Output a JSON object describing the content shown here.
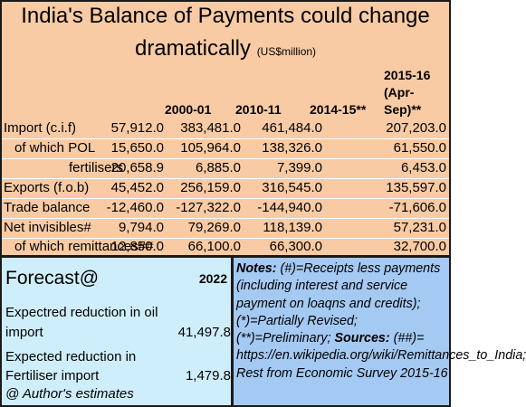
{
  "title": {
    "line1": "India's Balance of Payments could change",
    "line2": "dramatically",
    "unit": "(US$million)"
  },
  "columns": [
    "2000-01",
    "2010-11",
    "2014-15**",
    "2015-16 (Apr-Sep)**"
  ],
  "columns_split": {
    "c3_line1": "2015-16",
    "c3_line2": "(Apr-",
    "c3_line3": "Sep)**"
  },
  "rows": [
    {
      "label": "Import (c.i.f)",
      "values": [
        "57,912.0",
        "383,481.0",
        "461,484.0",
        "207,203.0"
      ]
    },
    {
      "label": "of which POL",
      "values": [
        "15,650.0",
        "105,964.0",
        "138,326.0",
        "61,550.0"
      ]
    },
    {
      "label": "fertilisers",
      "values": [
        "20,658.9",
        "6,885.0",
        "7,399.0",
        "6,453.0"
      ]
    },
    {
      "label": "Exports (f.o.b)",
      "values": [
        "45,452.0",
        "256,159.0",
        "316,545.0",
        "135,597.0"
      ]
    },
    {
      "label": "Trade balance",
      "values": [
        "-12,460.0",
        "-127,322.0",
        "-144,940.0",
        "-71,606.0"
      ]
    },
    {
      "label": "Net invisibles#",
      "values": [
        "9,794.0",
        "79,269.0",
        "118,139.0",
        "57,231.0"
      ]
    },
    {
      "label": "of which remittances##",
      "values": [
        "12,850.0",
        "66,100.0",
        "66,300.0",
        "32,700.0"
      ]
    }
  ],
  "forecast": {
    "title": "Forecast@",
    "year": "2022",
    "oil_label_1": "Expectred reduction in oil",
    "oil_label_2": "import",
    "oil_value": "41,497.8",
    "fert_label_1": "Expected reduction in",
    "fert_label_2": "Fertiliser import",
    "fert_value": "1,479.8",
    "estimates": "@ Author's estimates"
  },
  "notes": {
    "heading": "Notes:",
    "part1": " (#)=Receipts less payments (including interest and service payment on loaqns and credits); (*)=Partially Revised; (**)=Preliminary; ",
    "sources_heading": "Sources:",
    "part2": " (##)= https://en.wikipedia.org/wiki/Remittances_to_India; Rest from Economic Survey 2015-16"
  }
}
